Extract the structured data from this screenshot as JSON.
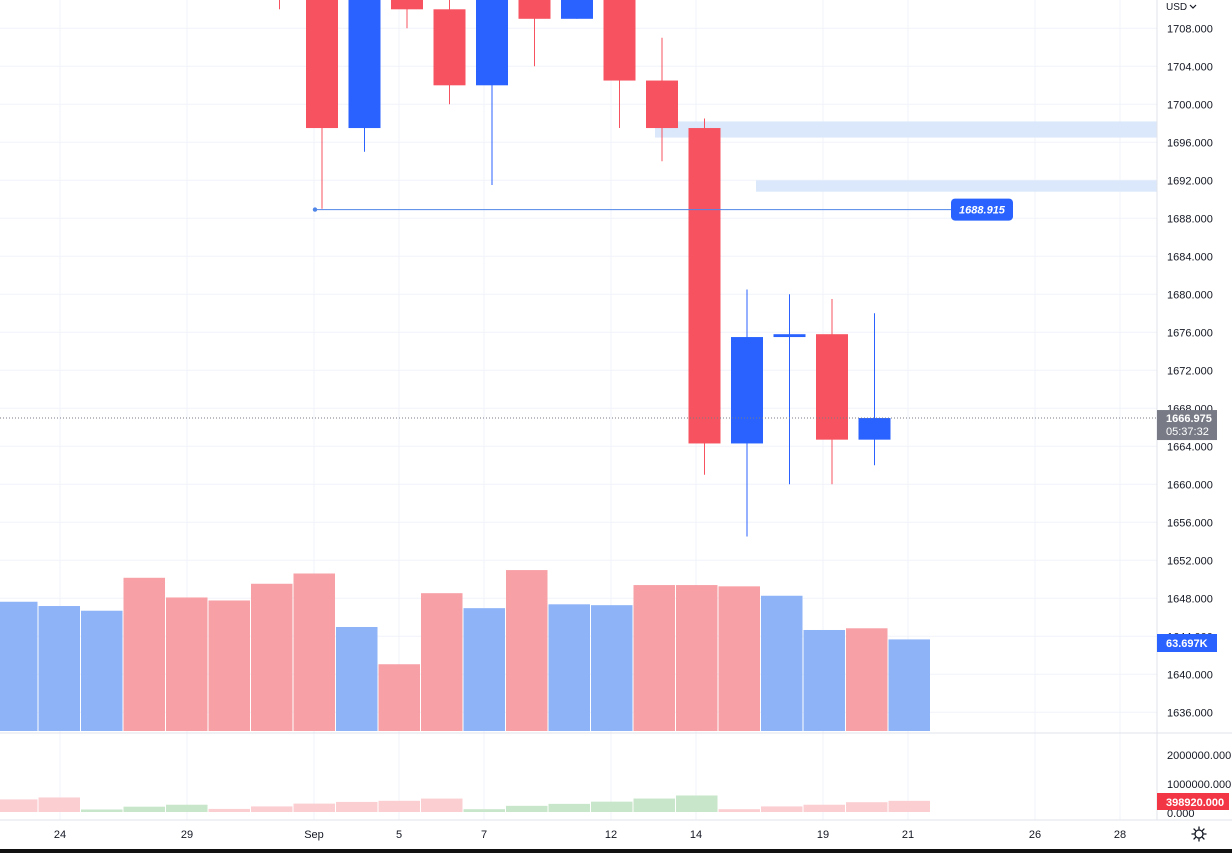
{
  "header": {
    "currency": "USD"
  },
  "chart_data": {
    "type": "candlestick",
    "currency": "USD",
    "price_axis": {
      "ticks": [
        "1708.000",
        "1704.000",
        "1700.000",
        "1696.000",
        "1692.000",
        "1688.000",
        "1684.000",
        "1680.000",
        "1676.000",
        "1672.000",
        "1668.000",
        "1664.000",
        "1660.000",
        "1656.000",
        "1652.000",
        "1648.000",
        "1644.000",
        "1640.000",
        "1636.000"
      ],
      "range": [
        1633,
        1711
      ]
    },
    "x_axis": {
      "labels": [
        "24",
        "29",
        "Sep",
        "5",
        "7",
        "12",
        "14",
        "19",
        "21",
        "26",
        "28"
      ]
    },
    "candles": [
      {
        "open": 1715,
        "high": 1717,
        "low": 1710,
        "close": 1712,
        "dir": "down"
      },
      {
        "open": 1718,
        "high": 1719,
        "low": 1689,
        "close": 1697.5,
        "dir": "down"
      },
      {
        "open": 1697.5,
        "high": 1722,
        "low": 1695,
        "close": 1715,
        "dir": "up"
      },
      {
        "open": 1712,
        "high": 1713,
        "low": 1708,
        "close": 1710,
        "dir": "down"
      },
      {
        "open": 1710,
        "high": 1711,
        "low": 1700,
        "close": 1702,
        "dir": "down"
      },
      {
        "open": 1702,
        "high": 1714,
        "low": 1691.5,
        "close": 1714,
        "dir": "up"
      },
      {
        "open": 1714,
        "high": 1716,
        "low": 1704,
        "close": 1709,
        "dir": "down"
      },
      {
        "open": 1709,
        "high": 1714,
        "low": 1709,
        "close": 1714,
        "dir": "up"
      },
      {
        "open": 1712,
        "high": 1714,
        "low": 1697.5,
        "close": 1702.5,
        "dir": "down"
      },
      {
        "open": 1702.5,
        "high": 1707,
        "low": 1694,
        "close": 1697.5,
        "dir": "down"
      },
      {
        "open": 1697.5,
        "high": 1698.5,
        "low": 1661,
        "close": 1664.3,
        "dir": "down"
      },
      {
        "open": 1664.3,
        "high": 1680.5,
        "low": 1654.5,
        "close": 1675.5,
        "dir": "up"
      },
      {
        "open": 1675.5,
        "high": 1680,
        "low": 1660,
        "close": 1675.8,
        "dir": "up"
      },
      {
        "open": 1675.8,
        "high": 1679.5,
        "low": 1660,
        "close": 1664.7,
        "dir": "down"
      },
      {
        "open": 1664.7,
        "high": 1678,
        "low": 1662,
        "close": 1666.975,
        "dir": "up"
      }
    ],
    "volume": {
      "bars": [
        {
          "value": 30.2,
          "dir": "up"
        },
        {
          "value": 29.2,
          "dir": "up"
        },
        {
          "value": 28.1,
          "dir": "up"
        },
        {
          "value": 35.8,
          "dir": "down"
        },
        {
          "value": 31.2,
          "dir": "down"
        },
        {
          "value": 30.5,
          "dir": "down"
        },
        {
          "value": 34.4,
          "dir": "down"
        },
        {
          "value": 36.8,
          "dir": "down"
        },
        {
          "value": 24.3,
          "dir": "up"
        },
        {
          "value": 15.6,
          "dir": "down"
        },
        {
          "value": 32.2,
          "dir": "down"
        },
        {
          "value": 28.7,
          "dir": "up"
        },
        {
          "value": 37.6,
          "dir": "down"
        },
        {
          "value": 29.6,
          "dir": "up"
        },
        {
          "value": 29.4,
          "dir": "up"
        },
        {
          "value": 34.1,
          "dir": "down"
        },
        {
          "value": 34.1,
          "dir": "down"
        },
        {
          "value": 33.8,
          "dir": "down"
        },
        {
          "value": 31.6,
          "dir": "up"
        },
        {
          "value": 23.6,
          "dir": "up"
        },
        {
          "value": 24.0,
          "dir": "down"
        },
        {
          "value": 21.4,
          "dir": "up"
        }
      ],
      "max": 45
    },
    "oscillator": {
      "ticks": [
        "2000000.000",
        "1000000.000",
        "0.000"
      ],
      "max": 2000000,
      "bars": [
        {
          "value": 450000,
          "dir": "down"
        },
        {
          "value": 520000,
          "dir": "down"
        },
        {
          "value": 90000,
          "dir": "up"
        },
        {
          "value": 190000,
          "dir": "up"
        },
        {
          "value": 260000,
          "dir": "up"
        },
        {
          "value": 110000,
          "dir": "down"
        },
        {
          "value": 200000,
          "dir": "down"
        },
        {
          "value": 300000,
          "dir": "down"
        },
        {
          "value": 360000,
          "dir": "down"
        },
        {
          "value": 400000,
          "dir": "down"
        },
        {
          "value": 480000,
          "dir": "down"
        },
        {
          "value": 100000,
          "dir": "up"
        },
        {
          "value": 220000,
          "dir": "up"
        },
        {
          "value": 290000,
          "dir": "up"
        },
        {
          "value": 370000,
          "dir": "up"
        },
        {
          "value": 480000,
          "dir": "up"
        },
        {
          "value": 590000,
          "dir": "up"
        },
        {
          "value": 100000,
          "dir": "down"
        },
        {
          "value": 200000,
          "dir": "down"
        },
        {
          "value": 260000,
          "dir": "down"
        },
        {
          "value": 350000,
          "dir": "down"
        },
        {
          "value": 398920,
          "dir": "down"
        }
      ]
    },
    "zones": [
      {
        "low": 1696.5,
        "high": 1698.2
      },
      {
        "low": 1690.8,
        "high": 1692.0
      }
    ],
    "hline": {
      "price": 1688.915,
      "label": "1688.915"
    },
    "last_price": {
      "value": 1666.975,
      "label": "1666.975",
      "countdown": "05:37:32"
    },
    "volume_label": "63.697K",
    "oscillator_label": "398920.000",
    "colors": {
      "up": "#2962ff",
      "down": "#f7525f",
      "volume_up": "#8eb3f7",
      "volume_down": "#f7a1a7",
      "osc_up": "#c8e6c9",
      "osc_down": "#fbcfd2",
      "zone": "#dbe8fb",
      "hline": "#4f86e8",
      "price_badge": "#787b86",
      "volume_badge": "#2962ff",
      "osc_badge": "#f23645"
    }
  }
}
